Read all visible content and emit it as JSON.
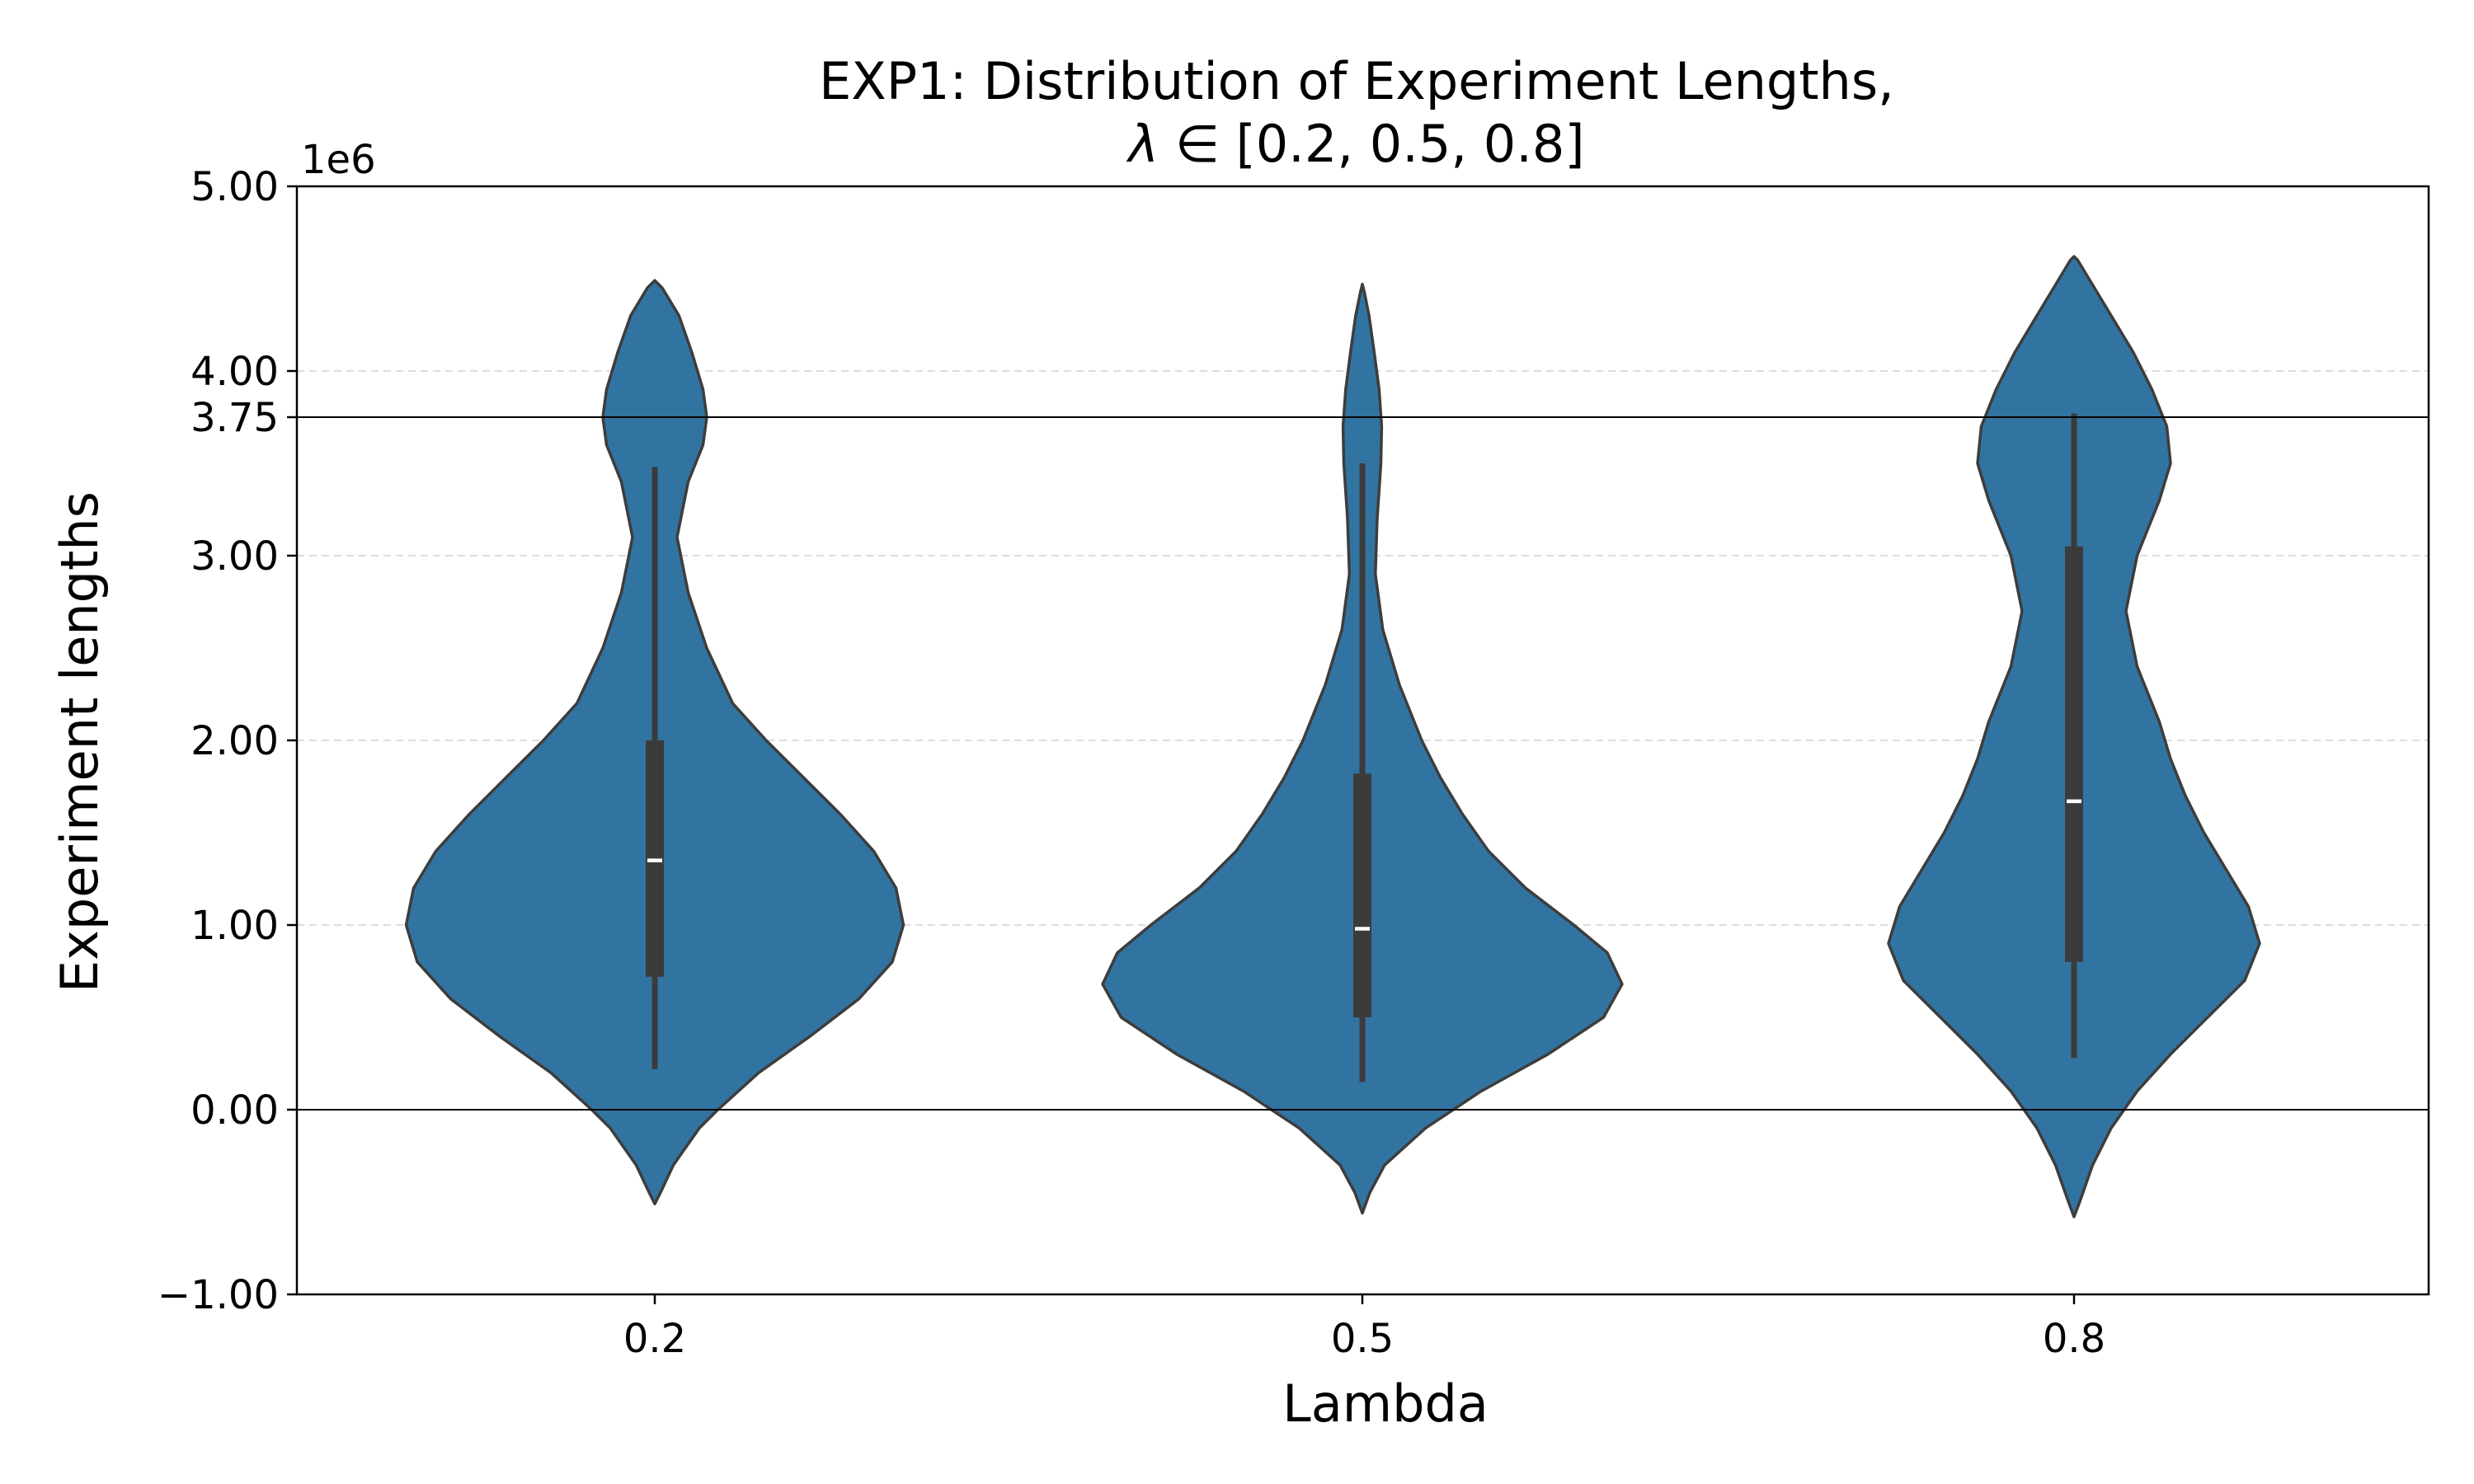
{
  "chart_data": {
    "type": "violin",
    "title_line1": "EXP1: Distribution of Experiment Lengths,",
    "title_line2_symbol": "λ",
    "title_line2_rest": " ∈ [0.2, 0.5, 0.8]",
    "xlabel": "Lambda",
    "ylabel": "Experiment lengths",
    "y_scale_label": "1e6",
    "categories": [
      "0.2",
      "0.5",
      "0.8"
    ],
    "ylim": [
      -1.0,
      5.0
    ],
    "yticks": [
      {
        "value": -1.0,
        "label": "−1.00"
      },
      {
        "value": 0.0,
        "label": "0.00"
      },
      {
        "value": 1.0,
        "label": "1.00"
      },
      {
        "value": 2.0,
        "label": "2.00"
      },
      {
        "value": 3.0,
        "label": "3.00"
      },
      {
        "value": 3.75,
        "label": "3.75"
      },
      {
        "value": 4.0,
        "label": "4.00"
      },
      {
        "value": 5.0,
        "label": "5.00"
      }
    ],
    "grid": {
      "horizontal": true,
      "style": "dashed"
    },
    "reference_lines": [
      0.0,
      3.75
    ],
    "violin_color": "#3274a1",
    "edge_color": "#3d3d3d",
    "box_color": "#3b3b3b",
    "median_color": "#ffffff",
    "reference_line_color": "#000000",
    "grid_color": "#d8d8d8",
    "violins": [
      {
        "category": "0.2",
        "box": {
          "whisker_low": 0.22,
          "q1": 0.72,
          "median": 1.35,
          "q3": 2.0,
          "whisker_high": 3.48
        },
        "density": [
          [
            -0.51,
            0.0
          ],
          [
            -0.45,
            0.015
          ],
          [
            -0.3,
            0.05
          ],
          [
            -0.1,
            0.12
          ],
          [
            0.0,
            0.17
          ],
          [
            0.2,
            0.28
          ],
          [
            0.4,
            0.42
          ],
          [
            0.6,
            0.55
          ],
          [
            0.8,
            0.64
          ],
          [
            1.0,
            0.67
          ],
          [
            1.2,
            0.65
          ],
          [
            1.4,
            0.59
          ],
          [
            1.6,
            0.5
          ],
          [
            1.8,
            0.4
          ],
          [
            2.0,
            0.3
          ],
          [
            2.2,
            0.21
          ],
          [
            2.5,
            0.14
          ],
          [
            2.8,
            0.09
          ],
          [
            3.1,
            0.06
          ],
          [
            3.4,
            0.09
          ],
          [
            3.6,
            0.13
          ],
          [
            3.75,
            0.14
          ],
          [
            3.9,
            0.13
          ],
          [
            4.1,
            0.1
          ],
          [
            4.3,
            0.065
          ],
          [
            4.45,
            0.02
          ],
          [
            4.49,
            0.0
          ]
        ]
      },
      {
        "category": "0.5",
        "box": {
          "whisker_low": 0.15,
          "q1": 0.5,
          "median": 0.98,
          "q3": 1.82,
          "whisker_high": 3.5
        },
        "density": [
          [
            -0.56,
            0.0
          ],
          [
            -0.45,
            0.02
          ],
          [
            -0.3,
            0.06
          ],
          [
            -0.1,
            0.17
          ],
          [
            0.1,
            0.32
          ],
          [
            0.3,
            0.5
          ],
          [
            0.5,
            0.65
          ],
          [
            0.68,
            0.7
          ],
          [
            0.85,
            0.66
          ],
          [
            1.0,
            0.57
          ],
          [
            1.2,
            0.44
          ],
          [
            1.4,
            0.34
          ],
          [
            1.6,
            0.27
          ],
          [
            1.8,
            0.21
          ],
          [
            2.0,
            0.16
          ],
          [
            2.3,
            0.1
          ],
          [
            2.6,
            0.055
          ],
          [
            2.9,
            0.035
          ],
          [
            3.2,
            0.04
          ],
          [
            3.5,
            0.05
          ],
          [
            3.7,
            0.052
          ],
          [
            3.9,
            0.045
          ],
          [
            4.1,
            0.032
          ],
          [
            4.3,
            0.018
          ],
          [
            4.43,
            0.005
          ],
          [
            4.47,
            0.0
          ]
        ]
      },
      {
        "category": "0.8",
        "box": {
          "whisker_low": 0.28,
          "q1": 0.8,
          "median": 1.67,
          "q3": 3.05,
          "whisker_high": 3.77
        },
        "density": [
          [
            -0.58,
            0.0
          ],
          [
            -0.5,
            0.015
          ],
          [
            -0.3,
            0.05
          ],
          [
            -0.1,
            0.1
          ],
          [
            0.1,
            0.17
          ],
          [
            0.3,
            0.26
          ],
          [
            0.5,
            0.36
          ],
          [
            0.7,
            0.46
          ],
          [
            0.9,
            0.5
          ],
          [
            1.1,
            0.47
          ],
          [
            1.3,
            0.41
          ],
          [
            1.5,
            0.35
          ],
          [
            1.7,
            0.3
          ],
          [
            1.9,
            0.26
          ],
          [
            2.1,
            0.23
          ],
          [
            2.4,
            0.17
          ],
          [
            2.7,
            0.14
          ],
          [
            3.0,
            0.17
          ],
          [
            3.3,
            0.23
          ],
          [
            3.5,
            0.26
          ],
          [
            3.7,
            0.25
          ],
          [
            3.9,
            0.21
          ],
          [
            4.1,
            0.16
          ],
          [
            4.3,
            0.1
          ],
          [
            4.5,
            0.04
          ],
          [
            4.6,
            0.01
          ],
          [
            4.62,
            0.0
          ]
        ]
      }
    ]
  }
}
